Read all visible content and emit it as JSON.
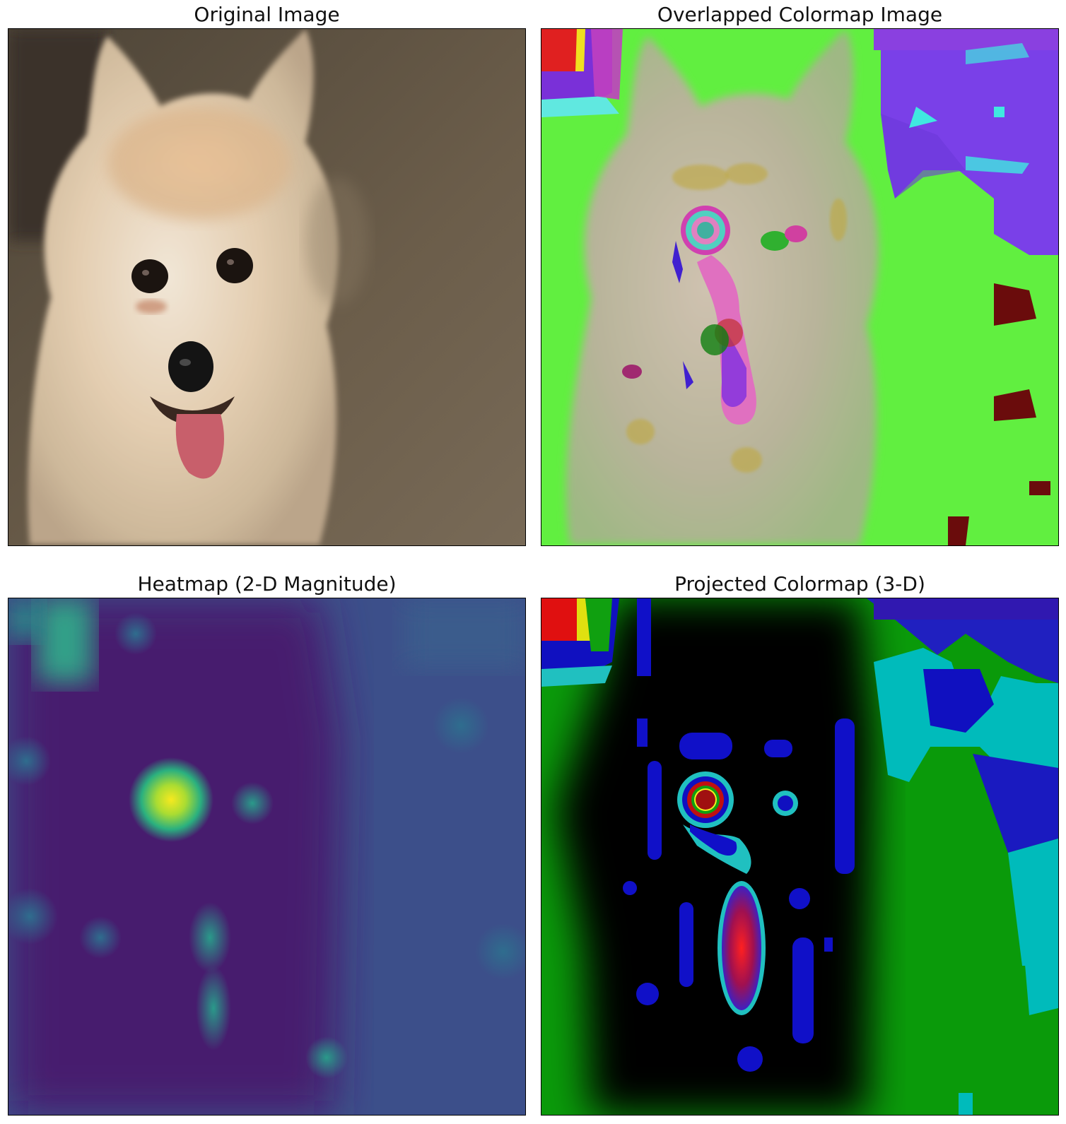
{
  "panels": [
    {
      "title": "Original Image"
    },
    {
      "title": "Overlapped Colormap Image"
    },
    {
      "title": "Heatmap (2-D Magnitude)"
    },
    {
      "title": "Projected Colormap (3-D)"
    }
  ]
}
